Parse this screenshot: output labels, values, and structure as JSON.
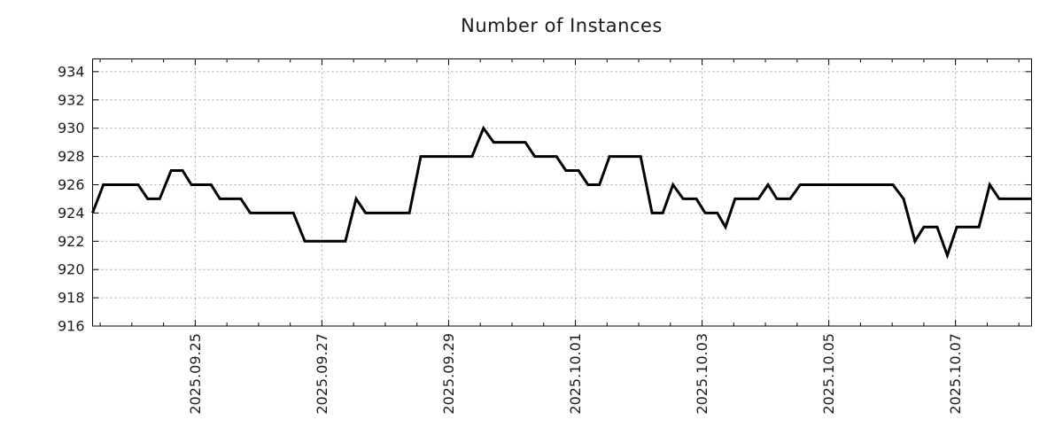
{
  "chart_data": {
    "type": "line",
    "title": "Number of Instances",
    "grid": true,
    "legend": false,
    "colors": {
      "line": "#000000",
      "grid": "#a8a8a8",
      "axis": "#000000",
      "text": "#1c1c1c",
      "background": "#ffffff"
    },
    "x_axis": {
      "unit": "day offset (2.0 = 2025.09.25, 1 unit = 1 day)",
      "range": [
        0.38,
        15.2
      ],
      "minor_tick_interval": 0.5,
      "major_ticks": [
        {
          "t": 2,
          "label": "2025.09.25"
        },
        {
          "t": 4,
          "label": "2025.09.27"
        },
        {
          "t": 6,
          "label": "2025.09.29"
        },
        {
          "t": 8,
          "label": "2025.10.01"
        },
        {
          "t": 10,
          "label": "2025.10.03"
        },
        {
          "t": 12,
          "label": "2025.10.05"
        },
        {
          "t": 14,
          "label": "2025.10.07"
        }
      ]
    },
    "y_axis": {
      "range": [
        916,
        934.9
      ],
      "ticks": [
        934,
        932,
        930,
        928,
        926,
        924,
        922,
        920,
        918,
        916
      ]
    },
    "series": [
      {
        "name": "instances",
        "color": "#000000",
        "points": [
          [
            0.38,
            924
          ],
          [
            0.55,
            926
          ],
          [
            1.1,
            926
          ],
          [
            1.25,
            925
          ],
          [
            1.44,
            925
          ],
          [
            1.62,
            927
          ],
          [
            1.8,
            927
          ],
          [
            1.94,
            926
          ],
          [
            2.25,
            926
          ],
          [
            2.39,
            925
          ],
          [
            2.72,
            925
          ],
          [
            2.87,
            924
          ],
          [
            3.55,
            924
          ],
          [
            3.73,
            922
          ],
          [
            4.37,
            922
          ],
          [
            4.54,
            925
          ],
          [
            4.69,
            924
          ],
          [
            5.38,
            924
          ],
          [
            5.56,
            928
          ],
          [
            6.37,
            928
          ],
          [
            6.55,
            930
          ],
          [
            6.71,
            929
          ],
          [
            7.21,
            929
          ],
          [
            7.36,
            928
          ],
          [
            7.7,
            928
          ],
          [
            7.85,
            927
          ],
          [
            8.05,
            927
          ],
          [
            8.2,
            926
          ],
          [
            8.38,
            926
          ],
          [
            8.54,
            928
          ],
          [
            9.03,
            928
          ],
          [
            9.21,
            924
          ],
          [
            9.38,
            924
          ],
          [
            9.54,
            926
          ],
          [
            9.7,
            925
          ],
          [
            9.91,
            925
          ],
          [
            10.05,
            924
          ],
          [
            10.24,
            924
          ],
          [
            10.37,
            923
          ],
          [
            10.52,
            925
          ],
          [
            10.89,
            925
          ],
          [
            11.04,
            926
          ],
          [
            11.18,
            925
          ],
          [
            11.39,
            925
          ],
          [
            11.55,
            926
          ],
          [
            13.01,
            926
          ],
          [
            13.18,
            925
          ],
          [
            13.36,
            922
          ],
          [
            13.5,
            923
          ],
          [
            13.71,
            923
          ],
          [
            13.87,
            921
          ],
          [
            14.02,
            923
          ],
          [
            14.37,
            923
          ],
          [
            14.54,
            926
          ],
          [
            14.69,
            925
          ],
          [
            15.2,
            925
          ]
        ]
      }
    ]
  }
}
